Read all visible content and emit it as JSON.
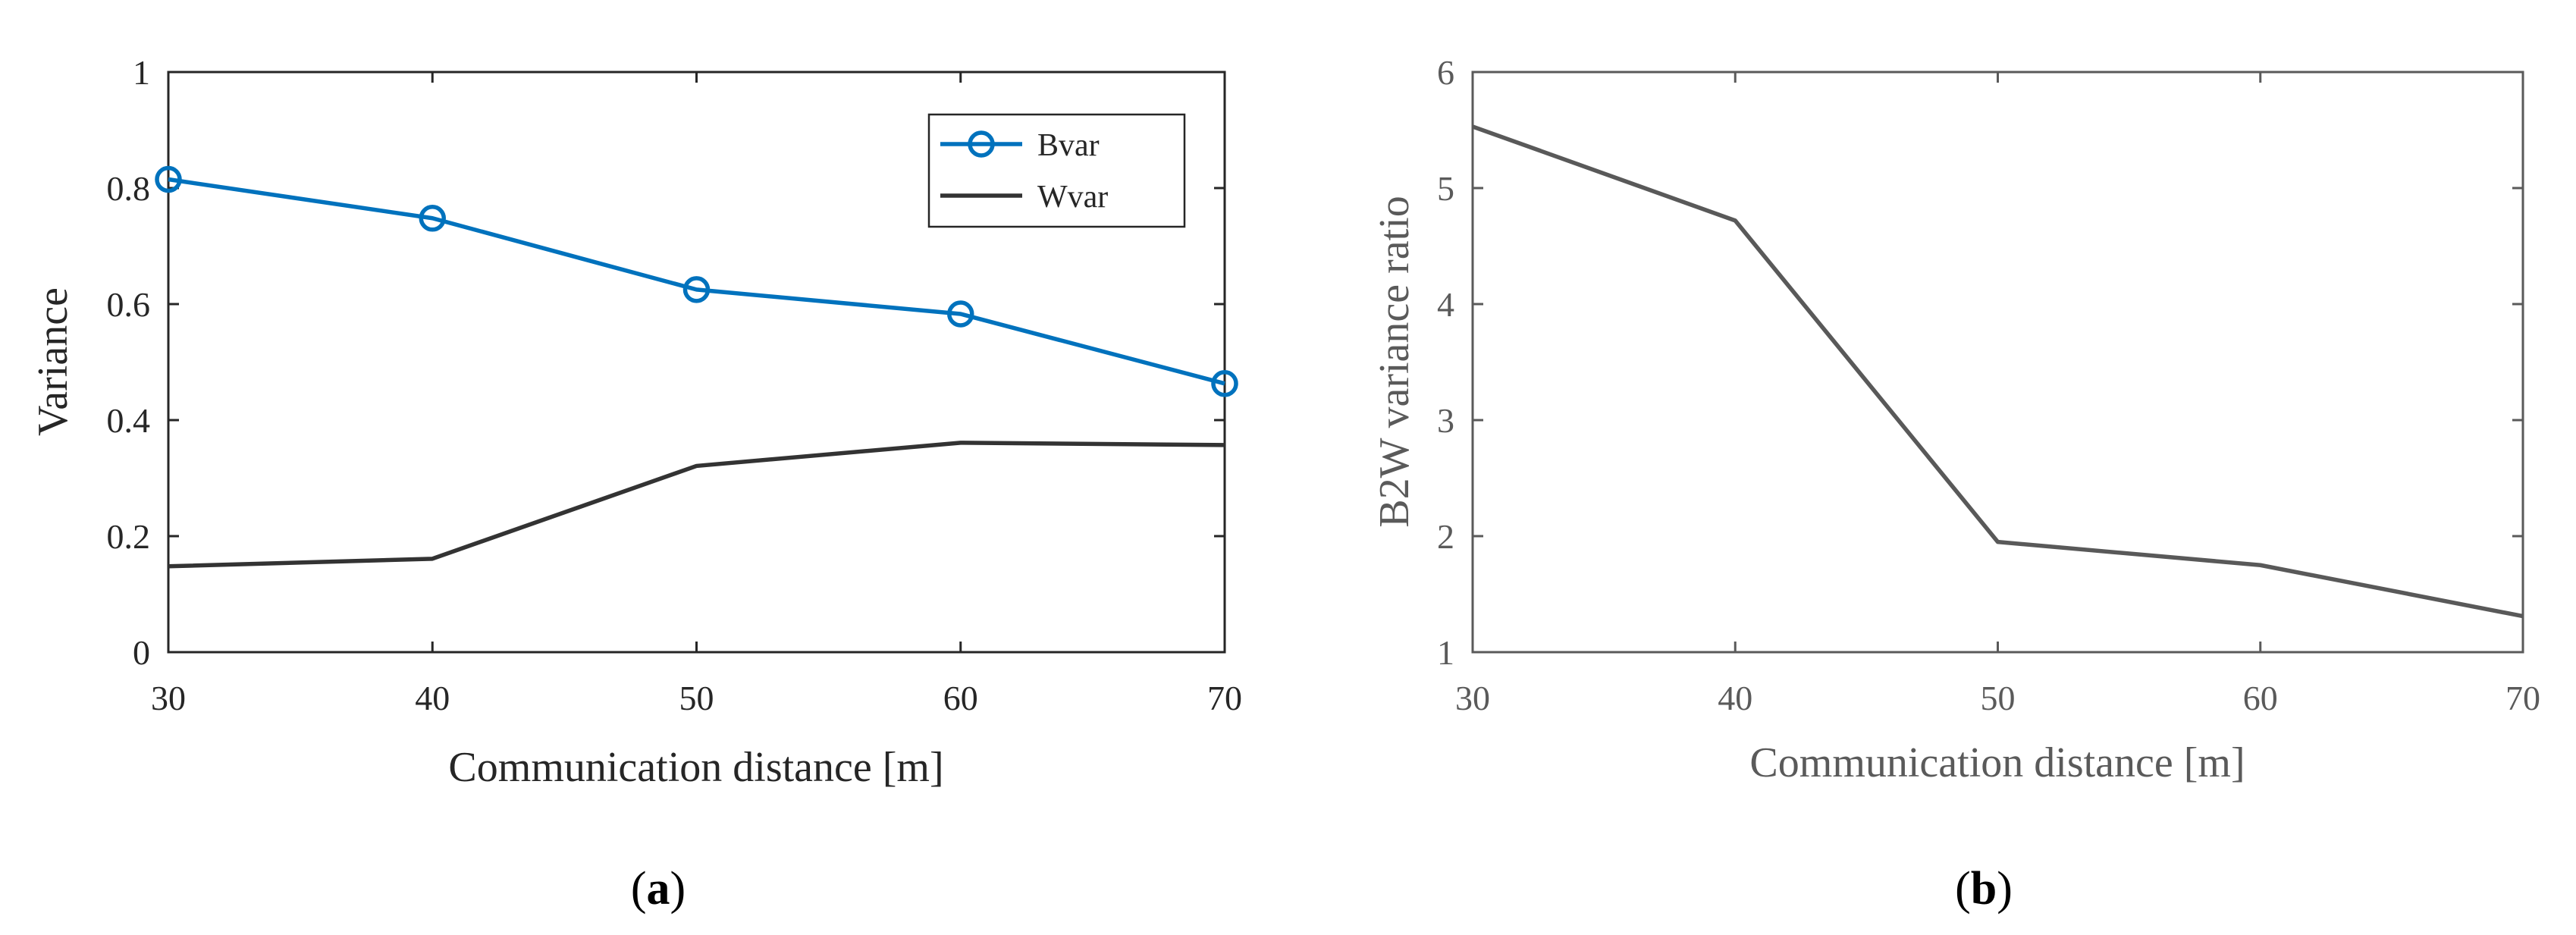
{
  "chart_data": [
    {
      "type": "line",
      "panel_label": "a",
      "x": [
        30,
        40,
        50,
        60,
        70
      ],
      "xticks": [
        "30",
        "40",
        "50",
        "60",
        "70"
      ],
      "yticks": [
        "0",
        "0.2",
        "0.4",
        "0.6",
        "0.8",
        "1"
      ],
      "xlim": [
        30,
        70
      ],
      "ylim": [
        0,
        1
      ],
      "xlabel": "Communication distance [m]",
      "ylabel": "Variance",
      "legend_position": "top-right",
      "series": [
        {
          "name": "Bvar",
          "values": [
            0.815,
            0.748,
            0.625,
            0.583,
            0.463
          ],
          "color": "#0072BD",
          "marker": "circle"
        },
        {
          "name": "Wvar",
          "values": [
            0.148,
            0.161,
            0.321,
            0.361,
            0.357
          ],
          "color": "#333333",
          "marker": "none"
        }
      ]
    },
    {
      "type": "line",
      "panel_label": "b",
      "x": [
        30,
        40,
        50,
        60,
        70
      ],
      "xticks": [
        "30",
        "40",
        "50",
        "60",
        "70"
      ],
      "yticks": [
        "1",
        "2",
        "3",
        "4",
        "5",
        "6"
      ],
      "xlim": [
        30,
        70
      ],
      "ylim": [
        1,
        6
      ],
      "xlabel": "Communication distance [m]",
      "ylabel": "B2W variance ratio",
      "series": [
        {
          "name": "B2W variance ratio",
          "values": [
            5.53,
            4.72,
            1.95,
            1.75,
            1.31
          ],
          "color": "#595959",
          "marker": "none"
        }
      ]
    }
  ]
}
